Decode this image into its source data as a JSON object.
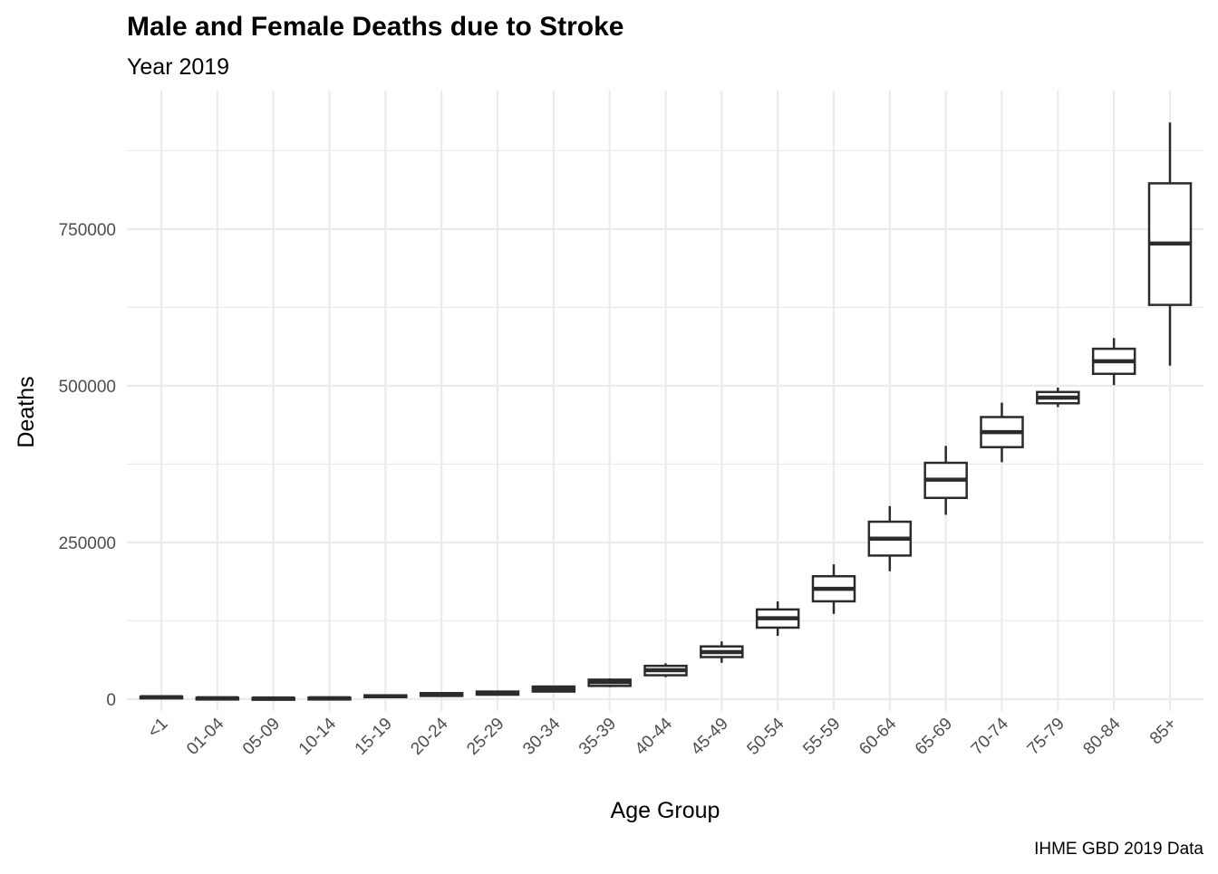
{
  "chart_data": {
    "type": "boxplot",
    "title": "Male and Female Deaths due to Stroke",
    "subtitle": "Year 2019",
    "xlabel": "Age Group",
    "ylabel": "Deaths",
    "caption": "IHME GBD 2019 Data",
    "ylim": [
      -19000,
      971000
    ],
    "yticks": [
      0,
      250000,
      500000,
      750000
    ],
    "ytick_labels": [
      "0",
      "250000",
      "500000",
      "750000"
    ],
    "grid": true,
    "colors": {
      "box": "#2b2b2b",
      "grid": "#ebebeb",
      "tick_text": "#4d4d4d"
    },
    "categories": [
      "<1",
      "01-04",
      "05-09",
      "10-14",
      "15-19",
      "20-24",
      "25-29",
      "30-34",
      "35-39",
      "40-44",
      "45-49",
      "50-54",
      "55-59",
      "60-64",
      "65-69",
      "70-74",
      "75-79",
      "80-84",
      "85+"
    ],
    "boxes": [
      {
        "min": 1500,
        "q1": 2000,
        "median": 3000,
        "q3": 4000,
        "max": 4500
      },
      {
        "min": 800,
        "q1": 1000,
        "median": 1500,
        "q3": 2200,
        "max": 2500
      },
      {
        "min": 500,
        "q1": 700,
        "median": 1000,
        "q3": 1800,
        "max": 2000
      },
      {
        "min": 800,
        "q1": 1000,
        "median": 1500,
        "q3": 2200,
        "max": 2500
      },
      {
        "min": 2500,
        "q1": 3000,
        "median": 4500,
        "q3": 6000,
        "max": 6500
      },
      {
        "min": 4500,
        "q1": 5000,
        "median": 7000,
        "q3": 9500,
        "max": 10000
      },
      {
        "min": 6000,
        "q1": 7000,
        "median": 9000,
        "q3": 12000,
        "max": 13000
      },
      {
        "min": 11000,
        "q1": 12000,
        "median": 16000,
        "q3": 20000,
        "max": 21000
      },
      {
        "min": 19000,
        "q1": 21000,
        "median": 27000,
        "q3": 31000,
        "max": 33000
      },
      {
        "min": 35000,
        "q1": 38000,
        "median": 46000,
        "q3": 53000,
        "max": 57000
      },
      {
        "min": 58000,
        "q1": 67000,
        "median": 75000,
        "q3": 84000,
        "max": 92000
      },
      {
        "min": 101000,
        "q1": 114000,
        "median": 129000,
        "q3": 143000,
        "max": 156000
      },
      {
        "min": 136000,
        "q1": 156000,
        "median": 176000,
        "q3": 196000,
        "max": 215000
      },
      {
        "min": 204000,
        "q1": 229000,
        "median": 256000,
        "q3": 283000,
        "max": 308000
      },
      {
        "min": 294000,
        "q1": 321000,
        "median": 350000,
        "q3": 377000,
        "max": 404000
      },
      {
        "min": 378000,
        "q1": 402000,
        "median": 426000,
        "q3": 450000,
        "max": 473000
      },
      {
        "min": 466000,
        "q1": 472000,
        "median": 481000,
        "q3": 490000,
        "max": 497000
      },
      {
        "min": 501000,
        "q1": 519000,
        "median": 539000,
        "q3": 559000,
        "max": 576000
      },
      {
        "min": 532000,
        "q1": 629000,
        "median": 727000,
        "q3": 823000,
        "max": 920000
      }
    ]
  }
}
